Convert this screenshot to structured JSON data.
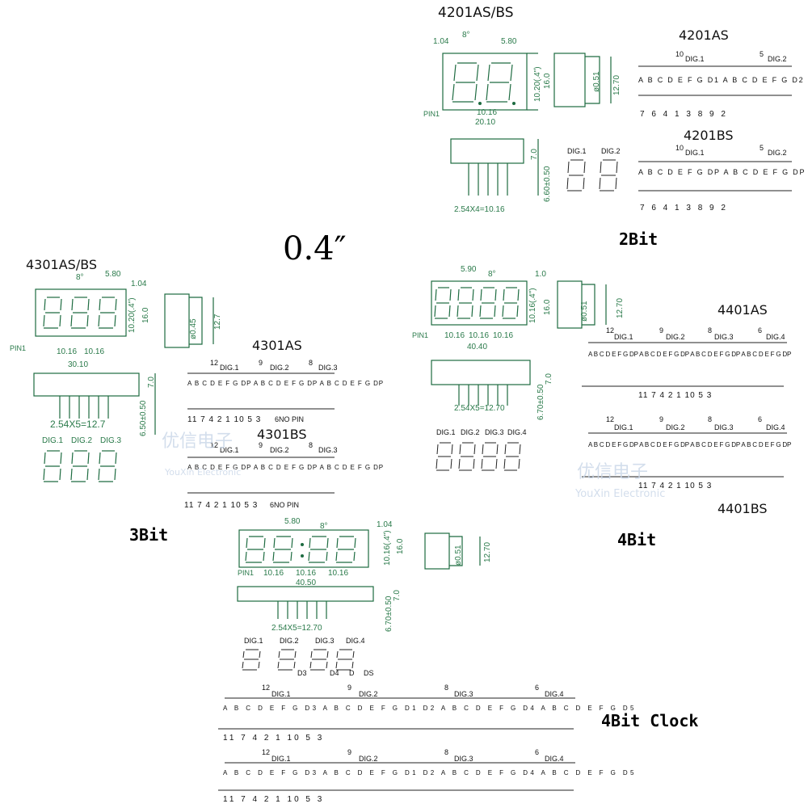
{
  "title": "0.4″",
  "sections": {
    "two_bit": {
      "label": "2Bit",
      "model": "4201AS/BS",
      "common_anode": "4201AS",
      "common_cathode": "4201BS",
      "dims": {
        "w1": "1.04",
        "angle": "8°",
        "w2": "5.80",
        "h1": "10.20(.4\")",
        "h2": "16.0",
        "pitch": "10.16",
        "total": "20.10",
        "pin": "PIN1",
        "pin_pitch": "2.54X4=10.16",
        "side_d": "ø0.51",
        "side_h": "12.70",
        "body_h": "7.0",
        "lead": "6.60±0.50"
      },
      "digits": {
        "d1": "DIG.1",
        "d2": "DIG.2"
      },
      "seg_as": "A B C D E F G D1 A B C D E F G D2",
      "seg_bs": "A B C D E F G DP A B C D E F G DP",
      "pin_top_as": {
        "p1": "10",
        "n1": "DIG.1",
        "p2": "5",
        "n2": "DIG.2"
      },
      "pins_bottom": "7 6 4 1 3 8 9 2"
    },
    "three_bit": {
      "label": "3Bit",
      "model": "4301AS/BS",
      "common_anode": "4301AS",
      "common_cathode": "4301BS",
      "dims": {
        "angle": "8°",
        "w2": "5.80",
        "w1": "1.04",
        "h1": "10.20(.4\")",
        "h2": "16.0",
        "pitch_a": "10.16",
        "pitch_b": "10.16",
        "total": "30.10",
        "pin": "PIN1",
        "pin_pitch": "2.54X5=12.7",
        "side_d": "ø0.45",
        "side_h": "12.7",
        "body_h": "7.0",
        "lead": "6.50±0.50"
      },
      "digits": {
        "d1": "DIG.1",
        "d2": "DIG.2",
        "d3": "DIG.3"
      },
      "pin_top": {
        "p1": "12",
        "n1": "DIG.1",
        "p2": "9",
        "n2": "DIG.2",
        "p3": "8",
        "n3": "DIG.3"
      },
      "seg": "A B C D E F G DP A B C D E F G DP A B C D E F G DP",
      "pins_bottom": "11 7 4 2 1 10 5 3",
      "nopin": "6NO PIN"
    },
    "four_bit": {
      "label": "4Bit",
      "common_anode": "4401AS",
      "common_cathode": "4401BS",
      "dims": {
        "w2": "5.90",
        "angle": "8°",
        "w1": "1.0",
        "h1": "10.16(.4\")",
        "h2": "16.0",
        "pitch_a": "10.16",
        "pitch_b": "10.16",
        "pitch_c": "10.16",
        "total": "40.40",
        "pin": "PIN1",
        "pin_pitch": "2.54X5=12.70",
        "side_d": "ø0.51",
        "side_h": "12.70",
        "body_h": "7.0",
        "lead": "6.70±0.50"
      },
      "digits": {
        "d1": "DIG.1",
        "d2": "DIG.2",
        "d3": "DIG.3",
        "d4": "DIG.4"
      },
      "pin_top": {
        "p1": "12",
        "n1": "DIG.1",
        "p2": "9",
        "n2": "DIG.2",
        "p3": "8",
        "n3": "DIG.3",
        "p4": "6",
        "n4": "DIG.4"
      },
      "seg": "A B C D E F G DP A B C D E F G DP A B C D E F G DP A B C D E F G DP",
      "pins_bottom": "11 7 4 2 1 10 5 3"
    },
    "four_bit_clock": {
      "label": "4Bit Clock",
      "dims": {
        "w2": "5.80",
        "angle": "8°",
        "w1": "1.04",
        "h1": "10.16(.4\")",
        "h2": "16.0",
        "pitch_a": "10.16",
        "pitch_b": "10.16",
        "pitch_c": "10.16",
        "total": "40.50",
        "pin": "PIN1",
        "pin_pitch": "2.54X5=12.70",
        "side_d": "ø0.51",
        "side_h": "12.70",
        "body_h": "7.0",
        "lead": "6.70±0.50"
      },
      "digits": {
        "d1": "DIG.1",
        "d2": "DIG.2",
        "d3": "DIG.3",
        "d4": "DIG.4",
        "x3": "D3",
        "x4": "D4",
        "xd": "D",
        "xs": "DS"
      },
      "pin_top": {
        "p1": "12",
        "n1": "DIG.1",
        "p2": "9",
        "n2": "DIG.2",
        "p3": "8",
        "n3": "DIG.3",
        "p4": "6",
        "n4": "DIG.4"
      },
      "seg": "A B C D E F G D3 A B C D E F G D1 D2 A B C D E F G D4 A B C D E F G D5",
      "pins_bottom": "11 7 4 2 1 10 5 3"
    }
  },
  "watermark": {
    "cn": "优信电子",
    "en": "YouXin Electronic"
  },
  "colors": {
    "drawing": "#1d6b40",
    "text": "#111111"
  }
}
